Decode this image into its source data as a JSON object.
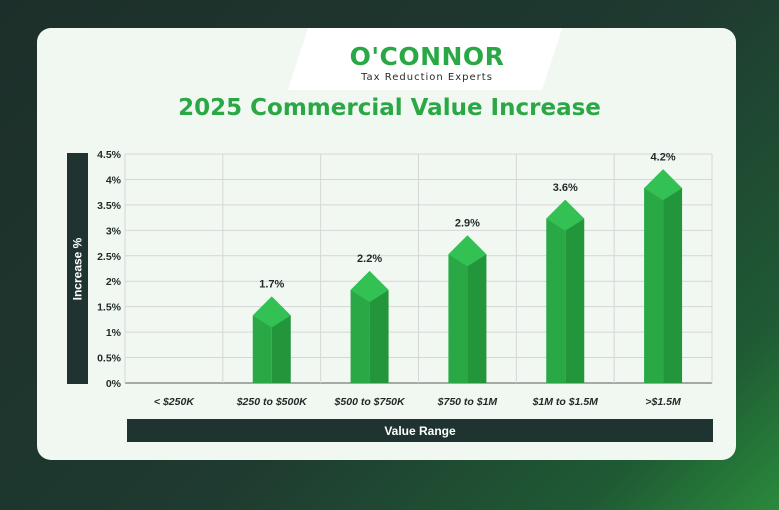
{
  "logo": {
    "name": "O'CONNOR",
    "tagline": "Tax Reduction Experts"
  },
  "colors": {
    "background": "#1f3a30",
    "card": "#f1f8f2",
    "accent": "#2aa845",
    "bar": "#2aa845",
    "label_band": "#1f3430"
  },
  "chart_data": {
    "type": "bar",
    "title": "2025 Commercial Value Increase",
    "xlabel": "Value Range",
    "ylabel": "Increase %",
    "categories": [
      "< $250K",
      "$250 to $500K",
      "$500 to $750K",
      "$750 to $1M",
      "$1M to $1.5M",
      ">$1.5M"
    ],
    "values": [
      null,
      1.7,
      2.2,
      2.9,
      3.6,
      4.2
    ],
    "data_labels": [
      "",
      "1.7%",
      "2.2%",
      "2.9%",
      "3.6%",
      "4.2%"
    ],
    "yticks": [
      "0%",
      "0.5%",
      "1%",
      "1.5%",
      "2%",
      "2.5%",
      "3%",
      "3.5%",
      "4%",
      "4.5%"
    ],
    "ylim": [
      0,
      4.5
    ],
    "grid": true,
    "legend": "none"
  }
}
